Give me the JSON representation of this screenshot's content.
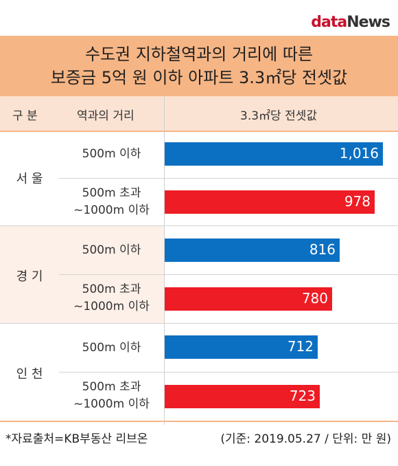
{
  "logo": {
    "part1": "data",
    "part2": "News"
  },
  "title": {
    "line1": "수도권 지하철역과의 거리에 따른",
    "line2": "보증금 5억 원 이하 아파트 3.3㎡당 전셋값"
  },
  "header": {
    "col1": "구 분",
    "col2": "역과의 거리",
    "col3": "3.3㎡당 전셋값"
  },
  "footer": {
    "source": "*자료출처=KB부동산 리브온",
    "meta": "(기준: 2019.05.27 / 단위: 만 원)"
  },
  "colors": {
    "near": "#0b6fc2",
    "far": "#ee1c24",
    "title_bg": "#f6b584",
    "header_bg": "#fbe3d3",
    "shade": "#fdf0e8"
  },
  "chart_data": {
    "type": "bar",
    "orientation": "horizontal",
    "groups": [
      "서 울",
      "경 기",
      "인 천"
    ],
    "categories": [
      {
        "group": "서 울",
        "label_line1": "500m 이하",
        "label_line2": "",
        "value": 1016,
        "value_label": "1,016"
      },
      {
        "group": "서 울",
        "label_line1": "500m 초과",
        "label_line2": "~1000m 이하",
        "value": 978,
        "value_label": "978"
      },
      {
        "group": "경 기",
        "label_line1": "500m 이하",
        "label_line2": "",
        "value": 816,
        "value_label": "816"
      },
      {
        "group": "경 기",
        "label_line1": "500m 초과",
        "label_line2": "~1000m 이하",
        "value": 780,
        "value_label": "780"
      },
      {
        "group": "인 천",
        "label_line1": "500m 이하",
        "label_line2": "",
        "value": 712,
        "value_label": "712"
      },
      {
        "group": "인 천",
        "label_line1": "500m 초과",
        "label_line2": "~1000m 이하",
        "value": 723,
        "value_label": "723"
      }
    ],
    "xlim": [
      0,
      1030
    ],
    "grid": false,
    "legend": "none"
  }
}
